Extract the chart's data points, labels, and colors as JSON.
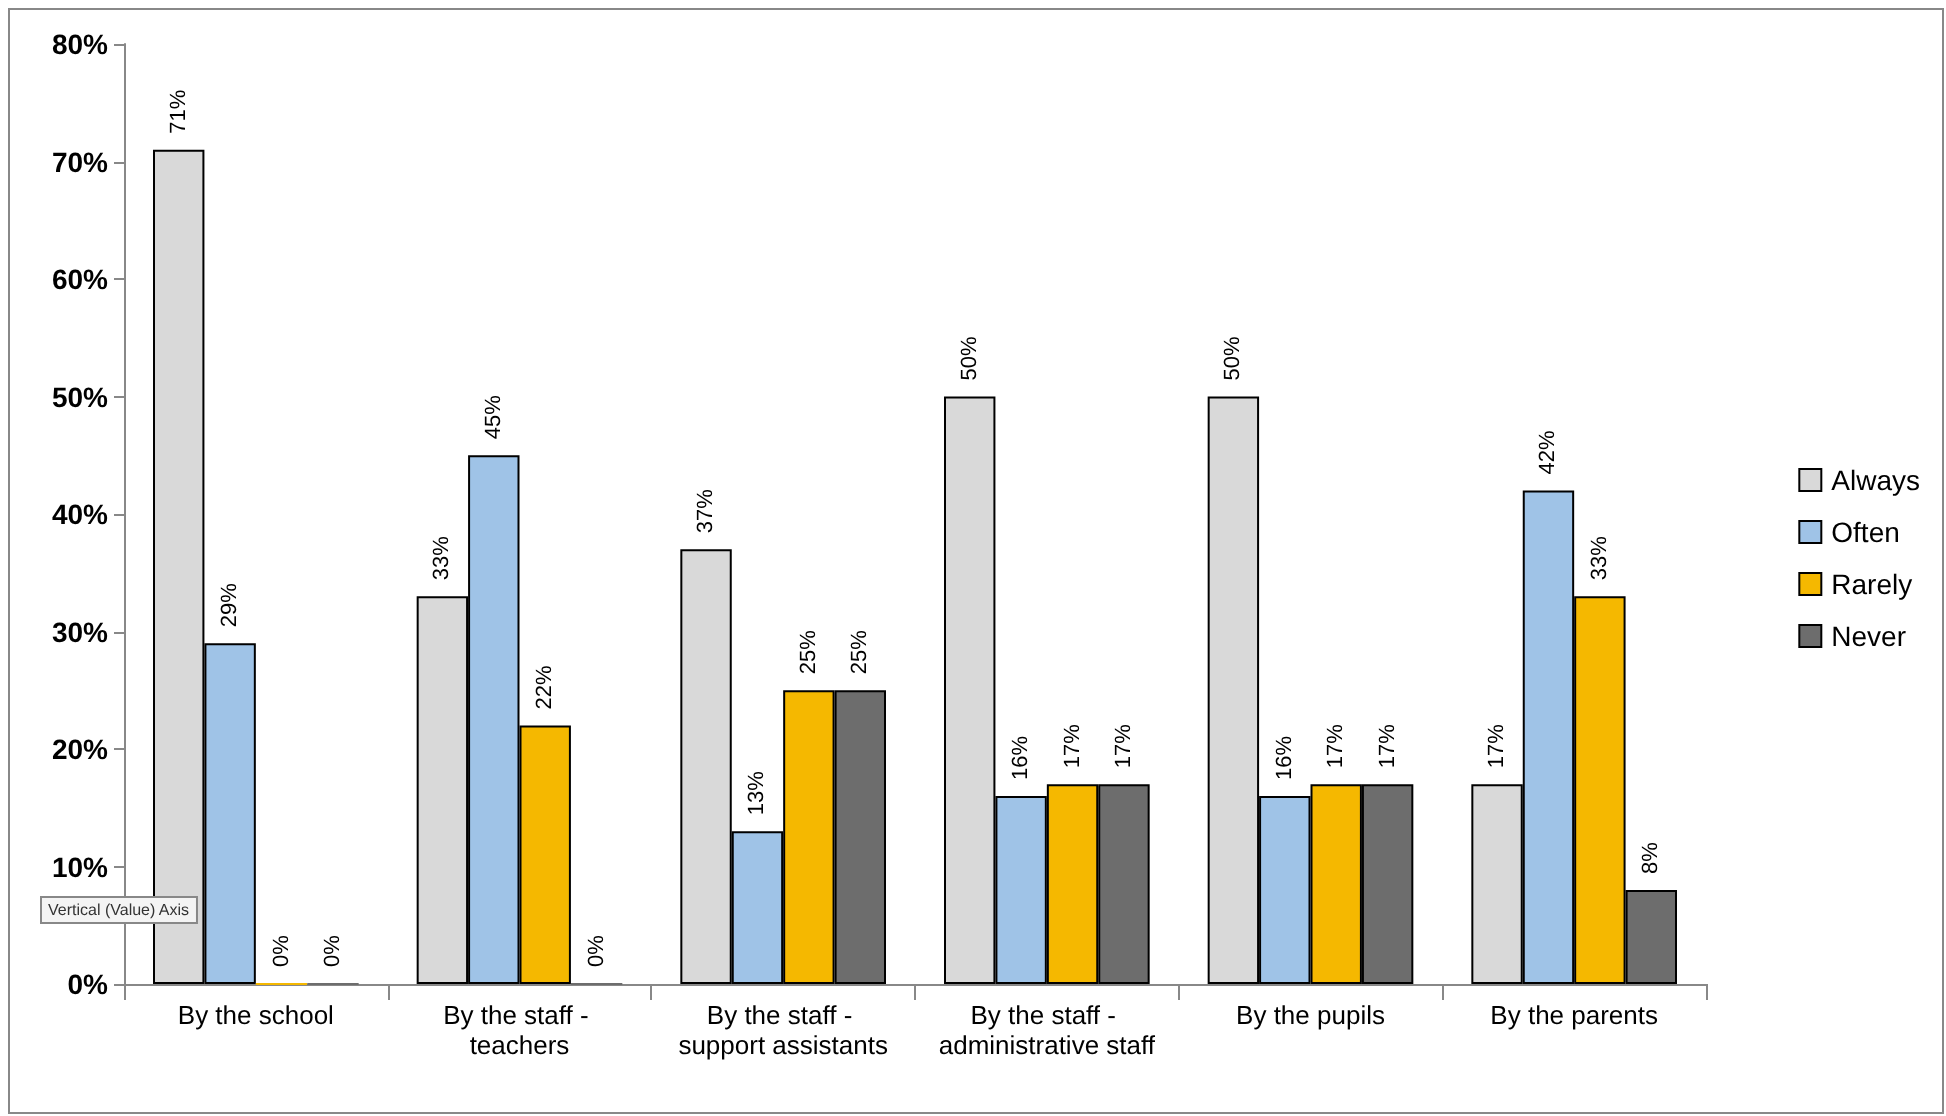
{
  "chart_data": {
    "type": "bar",
    "categories": [
      "By the school",
      "By the staff - teachers",
      "By the staff - support assistants",
      "By the staff - administrative staff",
      "By the pupils",
      "By the parents"
    ],
    "series": [
      {
        "name": "Always",
        "color": "#d9d9d9",
        "values": [
          71,
          33,
          37,
          50,
          50,
          17
        ],
        "value_labels": [
          "71%",
          "33%",
          "37%",
          "50%",
          "50%",
          "17%"
        ]
      },
      {
        "name": "Often",
        "color": "#9fc3e7",
        "values": [
          29,
          45,
          13,
          16,
          16,
          42
        ],
        "value_labels": [
          "29%",
          "45%",
          "13%",
          "16%",
          "16%",
          "42%"
        ]
      },
      {
        "name": "Rarely",
        "color": "#f5b800",
        "values": [
          0,
          22,
          25,
          17,
          17,
          33
        ],
        "value_labels": [
          "0%",
          "22%",
          "25%",
          "17%",
          "17%",
          "33%"
        ]
      },
      {
        "name": "Never",
        "color": "#6d6d6d",
        "values": [
          0,
          0,
          25,
          17,
          17,
          8
        ],
        "value_labels": [
          "0%",
          "0%",
          "25%",
          "17%",
          "17%",
          "8%"
        ]
      }
    ],
    "ylim": [
      0,
      80
    ],
    "yticks": [
      {
        "value": 0,
        "label": "0%"
      },
      {
        "value": 10,
        "label": "10%"
      },
      {
        "value": 20,
        "label": "20%"
      },
      {
        "value": 30,
        "label": "30%"
      },
      {
        "value": 40,
        "label": "40%"
      },
      {
        "value": 50,
        "label": "50%"
      },
      {
        "value": 60,
        "label": "60%"
      },
      {
        "value": 70,
        "label": "70%"
      },
      {
        "value": 80,
        "label": "80%"
      }
    ],
    "grid": false,
    "legend": "right",
    "annotations": [
      "Vertical (Value) Axis"
    ]
  }
}
